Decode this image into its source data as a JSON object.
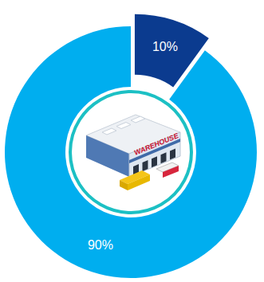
{
  "chart_data": {
    "type": "pie",
    "values": [
      10,
      90
    ],
    "value_labels": [
      "10%",
      "90%"
    ],
    "colors": [
      "#0b3b8f",
      "#00aeef"
    ],
    "data_labels": true,
    "annotations": [
      "WAREHOUSE"
    ]
  }
}
